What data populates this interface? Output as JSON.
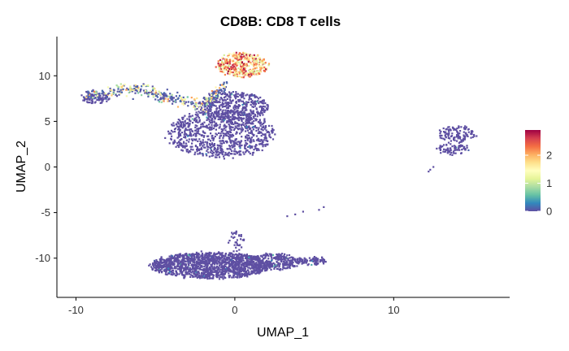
{
  "chart_data": {
    "type": "scatter",
    "title": "CD8B: CD8 T cells",
    "xlabel": "UMAP_1",
    "ylabel": "UMAP_2",
    "xlim": [
      -11.2,
      17.3
    ],
    "ylim": [
      -14.3,
      14.3
    ],
    "x_ticks": [
      -10,
      0,
      10
    ],
    "y_ticks": [
      -10,
      -5,
      0,
      5,
      10
    ],
    "x_tick_labels": [
      "-10",
      "0",
      "10"
    ],
    "y_tick_labels": [
      "-10",
      "-5",
      "0",
      "5",
      "10"
    ],
    "grid": false,
    "legend": {
      "placement": "right",
      "type": "colorbar",
      "range": [
        0,
        2.9
      ],
      "ticks": [
        0,
        1,
        2
      ],
      "tick_labels": [
        "0",
        "1",
        "2"
      ],
      "colors": [
        "#5e4fa2",
        "#3288bd",
        "#66c2a5",
        "#abdda4",
        "#e6f598",
        "#ffffbf",
        "#fee08b",
        "#fdae61",
        "#f46d43",
        "#d53e4f",
        "#9e0142"
      ]
    },
    "clusters": [
      {
        "cx": -0.9,
        "cy": 3.6,
        "rx": 3.4,
        "ry": 2.6,
        "n": 900,
        "value": "low"
      },
      {
        "cx": -0.1,
        "cy": 6.6,
        "rx": 2.2,
        "ry": 1.6,
        "n": 450,
        "value": "low"
      },
      {
        "cx": -8.8,
        "cy": 7.6,
        "rx": 0.9,
        "ry": 0.7,
        "n": 90,
        "value": "low"
      },
      {
        "cx": 0.5,
        "cy": 11.2,
        "rx": 1.6,
        "ry": 1.3,
        "n": 420,
        "value": "high"
      },
      {
        "cx": 14.0,
        "cy": 3.6,
        "rx": 1.2,
        "ry": 0.9,
        "n": 120,
        "value": "low"
      },
      {
        "cx": 13.7,
        "cy": 2.0,
        "rx": 1.0,
        "ry": 0.6,
        "n": 70,
        "value": "low"
      },
      {
        "cx": -1.5,
        "cy": -10.8,
        "rx": 3.8,
        "ry": 1.4,
        "n": 1500,
        "value": "low"
      },
      {
        "cx": 2.5,
        "cy": -10.4,
        "rx": 1.6,
        "ry": 0.9,
        "n": 260,
        "value": "low"
      },
      {
        "cx": 4.8,
        "cy": -10.3,
        "rx": 1.0,
        "ry": 0.4,
        "n": 90,
        "value": "low"
      },
      {
        "cx": 0.1,
        "cy": -8.2,
        "rx": 0.4,
        "ry": 1.2,
        "n": 35,
        "value": "low"
      }
    ],
    "stream": {
      "points": [
        [
          -9.3,
          7.9
        ],
        [
          -8.0,
          8.0
        ],
        [
          -7.0,
          8.5
        ],
        [
          -6.0,
          8.5
        ],
        [
          -5.0,
          8.2
        ],
        [
          -4.0,
          7.4
        ],
        [
          -3.0,
          7.0
        ],
        [
          -2.0,
          6.9
        ],
        [
          -1.4,
          7.8
        ],
        [
          -0.6,
          8.8
        ]
      ],
      "n": 380,
      "width": 0.32,
      "value": "mid"
    },
    "isolated_points": [
      [
        3.8,
        -5.2
      ],
      [
        4.3,
        -4.9
      ],
      [
        5.3,
        -4.7
      ],
      [
        5.6,
        -4.4
      ],
      [
        3.3,
        -5.4
      ],
      [
        12.5,
        0.0
      ],
      [
        12.3,
        -0.3
      ],
      [
        12.2,
        -0.5
      ]
    ]
  }
}
